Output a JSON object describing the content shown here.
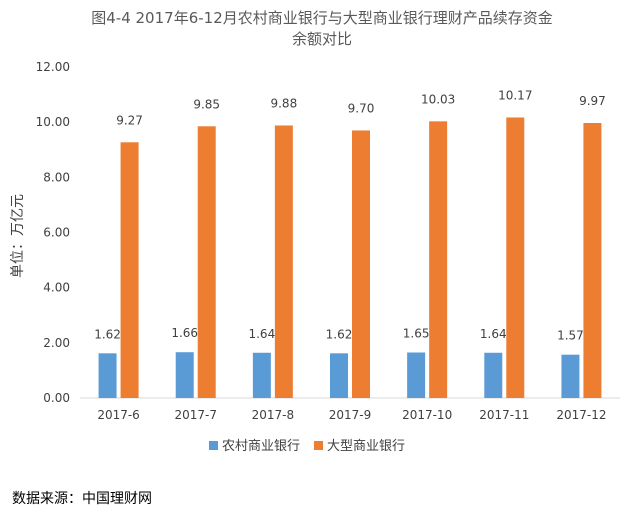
{
  "chart_data": {
    "type": "bar",
    "title": "图4-4 2017年6-12月农村商业银行与大型商业银行理财产品续存资金",
    "subtitle": "余额对比",
    "ylabel": "单位：万亿元",
    "xlabel": "",
    "categories": [
      "2017-6",
      "2017-7",
      "2017-8",
      "2017-9",
      "2017-10",
      "2017-11",
      "2017-12"
    ],
    "series": [
      {
        "name": "农村商业银行",
        "color": "#5B9BD5",
        "values": [
          1.62,
          1.66,
          1.64,
          1.62,
          1.65,
          1.64,
          1.57
        ]
      },
      {
        "name": "大型商业银行",
        "color": "#ED7D31",
        "values": [
          9.27,
          9.85,
          9.88,
          9.7,
          10.03,
          10.17,
          9.97
        ]
      }
    ],
    "ylim": [
      0,
      12
    ],
    "yticks": [
      0,
      2,
      4,
      6,
      8,
      10,
      12
    ],
    "grid": false,
    "legend": "bottom"
  },
  "source": "数据来源：中国理财网"
}
